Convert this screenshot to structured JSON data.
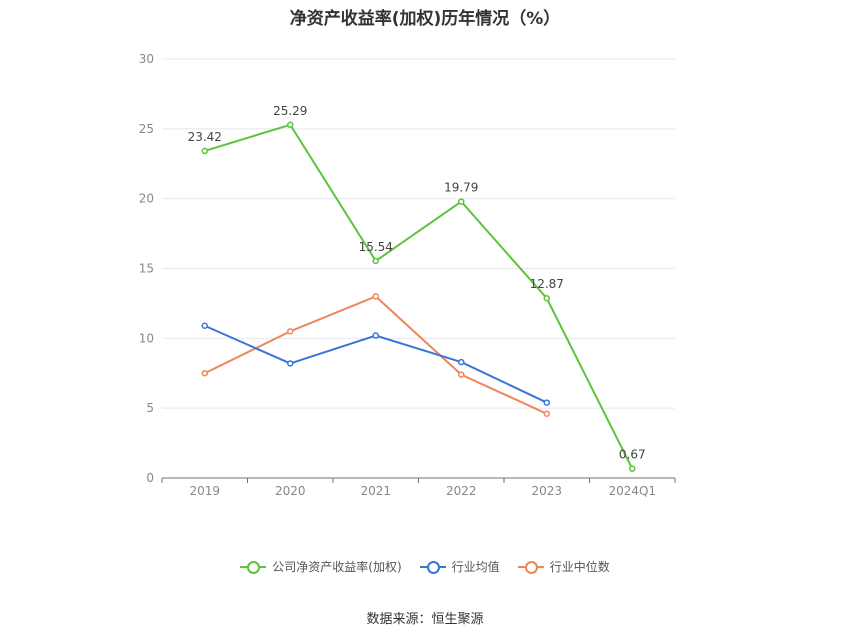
{
  "chart_data": {
    "type": "line",
    "title": "净资产收益率(加权)历年情况（%）",
    "categories": [
      "2019",
      "2020",
      "2021",
      "2022",
      "2023",
      "2024Q1"
    ],
    "ylim": [
      0,
      30
    ],
    "yticks": [
      0,
      5,
      10,
      15,
      20,
      25,
      30
    ],
    "grid": true,
    "legend_position": "bottom",
    "series": [
      {
        "name": "公司净资产收益率(加权)",
        "color": "#5cc43a",
        "values": [
          23.42,
          25.29,
          15.54,
          19.79,
          12.87,
          0.67
        ],
        "labels": [
          "23.42",
          "25.29",
          "15.54",
          "19.79",
          "12.87",
          "0.67"
        ]
      },
      {
        "name": "行业均值",
        "color": "#3b74d9",
        "values": [
          10.9,
          8.2,
          10.2,
          8.3,
          5.4,
          null
        ]
      },
      {
        "name": "行业中位数",
        "color": "#f0855a",
        "values": [
          7.5,
          10.5,
          13.0,
          7.4,
          4.6,
          null
        ]
      }
    ]
  },
  "source": "数据来源：恒生聚源"
}
